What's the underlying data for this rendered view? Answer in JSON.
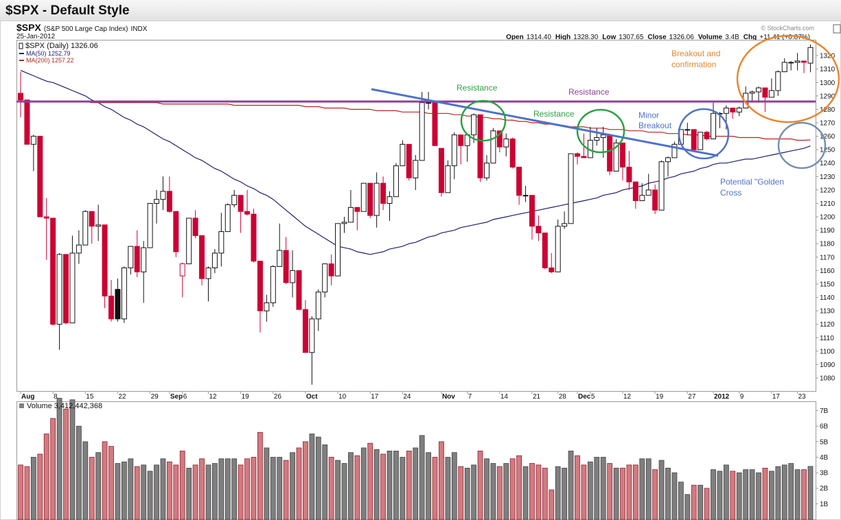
{
  "header": {
    "title": "$SPX - Default Style",
    "copyright": "© StockCharts.com"
  },
  "chart_data": {
    "type": "candlestick",
    "symbol": "$SPX",
    "description": "(S&P 500 Large Cap Index)",
    "exchange": "INDX",
    "date": "25-Jan-2012",
    "quote": [
      {
        "label": "Open",
        "value": "1314.40"
      },
      {
        "label": "High",
        "value": "1328.30"
      },
      {
        "label": "Low",
        "value": "1307.65"
      },
      {
        "label": "Close",
        "value": "1326.06"
      },
      {
        "label": "Volume",
        "value": "3.4B"
      },
      {
        "label": "Chg",
        "value": "+11.41 (+0.87%)"
      }
    ],
    "price_label": "$SPX (Daily) 1326.06",
    "legend": "top-left",
    "categories": [
      "Aug",
      null,
      null,
      null,
      null,
      "8",
      null,
      null,
      null,
      null,
      "15",
      null,
      null,
      null,
      null,
      "22",
      null,
      null,
      null,
      null,
      "29",
      null,
      null,
      "Sep",
      null,
      "6",
      null,
      null,
      null,
      "12",
      null,
      null,
      null,
      null,
      "19",
      null,
      null,
      null,
      null,
      "26",
      null,
      null,
      null,
      null,
      "Oct",
      null,
      null,
      null,
      null,
      "10",
      null,
      null,
      null,
      null,
      "17",
      null,
      null,
      null,
      null,
      "24",
      null,
      null,
      null,
      null,
      null,
      "Nov",
      null,
      null,
      null,
      "7",
      null,
      null,
      null,
      null,
      "14",
      null,
      null,
      null,
      null,
      "21",
      null,
      null,
      null,
      "28",
      null,
      null,
      "Dec",
      null,
      "5",
      null,
      null,
      null,
      null,
      "12",
      null,
      null,
      null,
      null,
      "19",
      null,
      null,
      null,
      null,
      "27",
      null,
      null,
      null,
      "2012",
      null,
      null,
      null,
      "9",
      null,
      null,
      null,
      null,
      "17",
      null,
      null,
      null,
      "23",
      null,
      null
    ],
    "open": [
      1292,
      1287,
      1254,
      1260,
      1200,
      1199,
      1120,
      1172,
      1121,
      1173,
      1179,
      1204,
      1193,
      1194,
      1141,
      1146,
      1124,
      1162,
      1178,
      1159,
      1177,
      1210,
      1213,
      1219,
      1204,
      1156,
      1165,
      1199,
      1186,
      1154,
      1162,
      1173,
      1189,
      1209,
      1216,
      1204,
      1202,
      1167,
      1130,
      1136,
      1163,
      1175,
      1151,
      1160,
      1131,
      1099,
      1124,
      1144,
      1165,
      1156,
      1195,
      1196,
      1207,
      1204,
      1225,
      1201,
      1225,
      1210,
      1215,
      1238,
      1254,
      1229,
      1242,
      1285,
      1285,
      1251,
      1218,
      1238,
      1261,
      1253,
      1261,
      1276,
      1229,
      1240,
      1264,
      1252,
      1258,
      1237,
      1216,
      1216,
      1193,
      1188,
      1162,
      1159,
      1193,
      1195,
      1247,
      1245,
      1244,
      1257,
      1259,
      1261,
      1234,
      1255,
      1237,
      1226,
      1212,
      1216,
      1220,
      1205,
      1241,
      1244,
      1254,
      1265,
      1265,
      1250,
      1263,
      1258,
      1277,
      1277,
      1281,
      1278,
      1281,
      1292,
      1293,
      1296,
      1289,
      1294,
      1308,
      1315,
      1315,
      1316,
      1314.4
    ],
    "high": [
      1308,
      1287,
      1261,
      1260,
      1214,
      1199,
      1173,
      1172,
      1186,
      1190,
      1205,
      1204,
      1209,
      1194,
      1153,
      1154,
      1163,
      1178,
      1190,
      1182,
      1210,
      1220,
      1230,
      1230,
      1204,
      1166,
      1199,
      1205,
      1186,
      1163,
      1176,
      1203,
      1210,
      1220,
      1216,
      1220,
      1206,
      1167,
      1142,
      1164,
      1195,
      1185,
      1175,
      1160,
      1138,
      1126,
      1146,
      1165,
      1172,
      1195,
      1200,
      1220,
      1207,
      1225,
      1225,
      1233,
      1230,
      1219,
      1240,
      1257,
      1254,
      1246,
      1293,
      1293,
      1285,
      1251,
      1242,
      1263,
      1261,
      1262,
      1277,
      1276,
      1246,
      1266,
      1264,
      1262,
      1259,
      1237,
      1223,
      1216,
      1201,
      1188,
      1173,
      1198,
      1204,
      1247,
      1248,
      1262,
      1267,
      1266,
      1267,
      1261,
      1258,
      1255,
      1249,
      1226,
      1225,
      1232,
      1224,
      1242,
      1245,
      1256,
      1265,
      1270,
      1265,
      1263,
      1264,
      1285,
      1278,
      1283,
      1281,
      1282,
      1297,
      1294,
      1297,
      1296,
      1303,
      1309,
      1318,
      1316,
      1322,
      1316,
      1328.3
    ],
    "low": [
      1274,
      1254,
      1234,
      1200,
      1168,
      1119,
      1101,
      1120,
      1121,
      1165,
      1179,
      1180,
      1182,
      1132,
      1122,
      1122,
      1121,
      1157,
      1155,
      1136,
      1177,
      1195,
      1205,
      1203,
      1170,
      1140,
      1165,
      1184,
      1149,
      1137,
      1158,
      1163,
      1189,
      1207,
      1188,
      1201,
      1166,
      1114,
      1122,
      1133,
      1163,
      1150,
      1140,
      1131,
      1099,
      1075,
      1115,
      1140,
      1149,
      1156,
      1188,
      1196,
      1190,
      1204,
      1199,
      1192,
      1205,
      1197,
      1215,
      1238,
      1227,
      1220,
      1242,
      1280,
      1253,
      1215,
      1218,
      1228,
      1239,
      1241,
      1255,
      1226,
      1227,
      1240,
      1248,
      1245,
      1236,
      1209,
      1211,
      1183,
      1182,
      1161,
      1158,
      1159,
      1191,
      1195,
      1239,
      1244,
      1244,
      1253,
      1244,
      1231,
      1234,
      1227,
      1220,
      1206,
      1212,
      1216,
      1202,
      1205,
      1230,
      1244,
      1254,
      1261,
      1248,
      1250,
      1257,
      1258,
      1266,
      1265,
      1273,
      1275,
      1281,
      1285,
      1285,
      1278,
      1289,
      1290,
      1308,
      1309,
      1309,
      1307,
      1307.65
    ],
    "close": [
      1287,
      1254,
      1260,
      1200,
      1199,
      1120,
      1172,
      1121,
      1173,
      1179,
      1204,
      1193,
      1194,
      1141,
      1124,
      1124,
      1162,
      1178,
      1159,
      1177,
      1210,
      1213,
      1219,
      1204,
      1174,
      1165,
      1199,
      1186,
      1154,
      1162,
      1173,
      1189,
      1209,
      1216,
      1204,
      1202,
      1167,
      1130,
      1136,
      1163,
      1175,
      1151,
      1160,
      1131,
      1099,
      1124,
      1144,
      1165,
      1156,
      1195,
      1196,
      1207,
      1204,
      1225,
      1201,
      1225,
      1210,
      1215,
      1238,
      1254,
      1229,
      1242,
      1285,
      1285,
      1253,
      1218,
      1238,
      1261,
      1253,
      1261,
      1276,
      1229,
      1240,
      1264,
      1252,
      1258,
      1237,
      1216,
      1216,
      1193,
      1188,
      1162,
      1159,
      1193,
      1195,
      1247,
      1245,
      1244,
      1257,
      1259,
      1261,
      1234,
      1255,
      1237,
      1226,
      1212,
      1216,
      1220,
      1205,
      1241,
      1244,
      1254,
      1265,
      1265,
      1250,
      1263,
      1258,
      1277,
      1277,
      1281,
      1278,
      1281,
      1292,
      1293,
      1296,
      1289,
      1294,
      1308,
      1315,
      1315,
      1316,
      1315,
      1326.06
    ],
    "up_color": "#111111",
    "down_color": "#cc0033",
    "ylim": [
      1070,
      1332
    ],
    "yticks": [
      1080,
      1090,
      1100,
      1110,
      1120,
      1130,
      1140,
      1150,
      1160,
      1170,
      1180,
      1190,
      1200,
      1210,
      1220,
      1230,
      1240,
      1250,
      1260,
      1270,
      1280,
      1290,
      1300,
      1310,
      1320
    ],
    "series": [
      {
        "name": "MA(50) 1252.79",
        "color": "#1c1c72",
        "values": [
          1309,
          1307,
          1305,
          1303,
          1301,
          1300,
          1298,
          1296,
          1294,
          1292,
          1290,
          1287,
          1285,
          1282,
          1280,
          1277,
          1274,
          1272,
          1269,
          1267,
          1264,
          1261,
          1258,
          1256,
          1253,
          1250,
          1247,
          1244,
          1242,
          1239,
          1236,
          1234,
          1231,
          1228,
          1226,
          1223,
          1221,
          1218,
          1216,
          1213,
          1209,
          1205,
          1201,
          1197,
          1193,
          1190,
          1187,
          1184,
          1181,
          1178,
          1177,
          1176,
          1174,
          1173,
          1172,
          1173,
          1174,
          1176,
          1177,
          1178,
          1180,
          1181,
          1183,
          1185,
          1186,
          1188,
          1189,
          1190,
          1192,
          1193,
          1194,
          1195,
          1196,
          1198,
          1199,
          1200,
          1201,
          1202,
          1203,
          1204,
          1205,
          1206,
          1207,
          1208,
          1209,
          1210,
          1211,
          1212,
          1213,
          1214,
          1216,
          1217,
          1218,
          1220,
          1221,
          1222,
          1223,
          1225,
          1226,
          1227,
          1229,
          1230,
          1232,
          1233,
          1234,
          1236,
          1237,
          1239,
          1240,
          1240,
          1241,
          1242,
          1243,
          1243,
          1244,
          1245,
          1246,
          1247,
          1248,
          1249,
          1250,
          1251,
          1252.79
        ]
      },
      {
        "name": "MA(200) 1257.22",
        "color": "#b3261e",
        "values": [
          1286,
          1286,
          1286,
          1286,
          1286,
          1286,
          1286,
          1286,
          1286,
          1286,
          1286,
          1285,
          1285,
          1285,
          1285,
          1285,
          1285,
          1285,
          1285,
          1285,
          1285,
          1285,
          1284,
          1284,
          1284,
          1284,
          1284,
          1284,
          1284,
          1284,
          1284,
          1284,
          1284,
          1283,
          1283,
          1283,
          1283,
          1283,
          1283,
          1283,
          1283,
          1283,
          1283,
          1283,
          1282,
          1282,
          1282,
          1281,
          1281,
          1281,
          1281,
          1280,
          1280,
          1280,
          1280,
          1279,
          1279,
          1279,
          1279,
          1278,
          1278,
          1278,
          1278,
          1277,
          1277,
          1277,
          1277,
          1276,
          1276,
          1275,
          1275,
          1274,
          1274,
          1273,
          1273,
          1272,
          1272,
          1271,
          1271,
          1270,
          1270,
          1269,
          1269,
          1268,
          1268,
          1267,
          1267,
          1267,
          1266,
          1266,
          1266,
          1265,
          1265,
          1265,
          1264,
          1264,
          1264,
          1263,
          1263,
          1263,
          1262,
          1262,
          1262,
          1261,
          1261,
          1261,
          1260,
          1260,
          1260,
          1260,
          1260,
          1259,
          1259,
          1259,
          1259,
          1258,
          1258,
          1258,
          1258,
          1258,
          1257,
          1257,
          1257.22
        ]
      }
    ],
    "volume": {
      "label": "Volume 3,412,442,368",
      "up_color": "#7f7f7f",
      "down_color": "#d27a80",
      "values": [
        3.5,
        3.4,
        4.0,
        4.2,
        5.5,
        6.5,
        7.8,
        7.1,
        7.7,
        6.0,
        5.0,
        4.0,
        4.3,
        5.0,
        4.7,
        3.6,
        3.7,
        3.9,
        3.4,
        3.5,
        3.1,
        3.5,
        3.9,
        3.7,
        3.5,
        4.4,
        3.3,
        3.5,
        3.9,
        3.5,
        3.6,
        3.9,
        3.9,
        3.9,
        3.5,
        3.9,
        4.0,
        5.6,
        4.6,
        4.0,
        4.0,
        3.8,
        4.3,
        4.6,
        5.0,
        5.5,
        5.3,
        4.8,
        4.0,
        3.8,
        3.6,
        4.3,
        4.1,
        4.6,
        4.9,
        4.5,
        4.2,
        4.4,
        4.4,
        4.0,
        4.4,
        4.6,
        5.4,
        4.3,
        4.0,
        5.0,
        4.0,
        4.3,
        3.4,
        3.3,
        3.5,
        4.4,
        3.9,
        3.6,
        3.4,
        3.6,
        3.9,
        4.1,
        3.4,
        3.6,
        3.5,
        3.3,
        1.9,
        3.4,
        3.3,
        4.4,
        4.1,
        3.5,
        3.7,
        4.0,
        4.0,
        3.6,
        3.3,
        3.3,
        3.5,
        3.5,
        3.9,
        3.9,
        3.2,
        3.8,
        3.3,
        3.0,
        2.4,
        1.6,
        2.2,
        2.2,
        2.0,
        3.2,
        3.1,
        3.5,
        3.1,
        3.0,
        3.2,
        3.2,
        3.0,
        3.3,
        3.1,
        3.4,
        3.5,
        3.6,
        3.2,
        3.2,
        3.41
      ],
      "ylim": [
        0,
        7.6
      ],
      "yticks": [
        {
          "value": 1,
          "label": "1B"
        },
        {
          "value": 2,
          "label": "2B"
        },
        {
          "value": 3,
          "label": "3B"
        },
        {
          "value": 4,
          "label": "4B"
        },
        {
          "value": 5,
          "label": "5B"
        },
        {
          "value": 6,
          "label": "6B"
        },
        {
          "value": 7,
          "label": "7B"
        }
      ]
    },
    "annotations": [
      [
        "Resistance"
      ],
      [
        "Resistance"
      ],
      [
        "Resistance"
      ],
      [
        "Minor",
        "Breakout"
      ],
      [
        "Breakout and",
        "confirmation"
      ],
      [
        "Potential \"Golden",
        "Cross"
      ]
    ]
  }
}
